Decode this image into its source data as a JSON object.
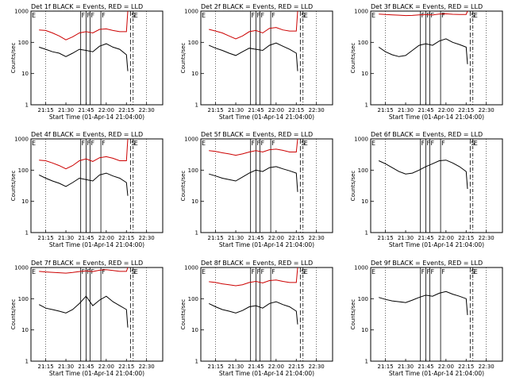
{
  "chart_data": {
    "type": "line",
    "layout": "3x3 grid of panels",
    "yscale": "log",
    "ylim": [
      1,
      1000
    ],
    "yticks": [
      "1",
      "10",
      "100",
      "1000"
    ],
    "ylabel": "Counts/sec",
    "xlabel": "Start Time (01-Apr-14 21:04:00)",
    "xlim": [
      "21:04",
      "22:42"
    ],
    "xticks": [
      "21:15",
      "21:30",
      "21:45",
      "22:00",
      "22:15",
      "22:30"
    ],
    "colors": {
      "events": "#000000",
      "lld": "#cc0000"
    },
    "event_markers": {
      "E": "21:04",
      "F": [
        "21:41",
        "21:45",
        "21:48",
        "21:56"
      ],
      "S": "22:18",
      "E2": "22:20"
    },
    "panels": [
      {
        "title": "Det 1f BLACK = Events, RED = LLD",
        "series": [
          {
            "x": [
              "21:10",
              "21:15",
              "21:20",
              "21:25",
              "21:30",
              "21:35",
              "21:40",
              "21:45",
              "21:50",
              "21:55",
              "22:00",
              "22:05",
              "22:10",
              "22:15",
              "22:16"
            ],
            "y": [
              250,
              240,
              200,
              160,
              120,
              150,
              200,
              220,
              200,
              260,
              270,
              240,
              220,
              220,
              1000
            ]
          },
          {
            "x": [
              "21:10",
              "21:15",
              "21:20",
              "21:25",
              "21:30",
              "21:35",
              "21:40",
              "21:45",
              "21:50",
              "21:55",
              "22:00",
              "22:05",
              "22:10",
              "22:15",
              "22:16"
            ],
            "y": [
              70,
              60,
              50,
              45,
              35,
              45,
              60,
              55,
              50,
              75,
              90,
              70,
              60,
              40,
              12
            ]
          }
        ]
      },
      {
        "title": "Det 2f BLACK = Events, RED = LLD",
        "series": [
          {
            "x": [
              "21:10",
              "21:15",
              "21:20",
              "21:25",
              "21:30",
              "21:35",
              "21:40",
              "21:45",
              "21:50",
              "21:55",
              "22:00",
              "22:05",
              "22:10",
              "22:15",
              "22:16"
            ],
            "y": [
              260,
              230,
              200,
              160,
              130,
              160,
              220,
              240,
              200,
              280,
              300,
              250,
              230,
              230,
              1000
            ]
          },
          {
            "x": [
              "21:10",
              "21:15",
              "21:20",
              "21:25",
              "21:30",
              "21:35",
              "21:40",
              "21:45",
              "21:50",
              "21:55",
              "22:00",
              "22:05",
              "22:10",
              "22:15",
              "22:16"
            ],
            "y": [
              80,
              65,
              55,
              45,
              38,
              50,
              65,
              60,
              55,
              80,
              95,
              75,
              60,
              45,
              12
            ]
          }
        ]
      },
      {
        "title": "Det 3f BLACK = Events, RED = LLD",
        "series": [
          {
            "x": [
              "21:10",
              "21:15",
              "21:20",
              "21:25",
              "21:30",
              "21:35",
              "21:40",
              "21:45",
              "21:50",
              "21:55",
              "22:00",
              "22:05",
              "22:10",
              "22:15",
              "22:16"
            ],
            "y": [
              800,
              780,
              760,
              740,
              720,
              730,
              760,
              780,
              760,
              800,
              820,
              790,
              780,
              780,
              1000
            ]
          },
          {
            "x": [
              "21:10",
              "21:15",
              "21:20",
              "21:25",
              "21:30",
              "21:35",
              "21:40",
              "21:45",
              "21:50",
              "21:55",
              "22:00",
              "22:05",
              "22:10",
              "22:15",
              "22:16"
            ],
            "y": [
              70,
              50,
              40,
              35,
              38,
              55,
              80,
              90,
              80,
              110,
              130,
              100,
              85,
              70,
              20
            ]
          }
        ]
      },
      {
        "title": "Det 4f BLACK = Events, RED = LLD",
        "series": [
          {
            "x": [
              "21:10",
              "21:15",
              "21:20",
              "21:25",
              "21:30",
              "21:35",
              "21:40",
              "21:45",
              "21:50",
              "21:55",
              "22:00",
              "22:05",
              "22:10",
              "22:15",
              "22:16"
            ],
            "y": [
              210,
              200,
              170,
              140,
              110,
              140,
              200,
              230,
              190,
              250,
              270,
              240,
              200,
              200,
              1000
            ]
          },
          {
            "x": [
              "21:10",
              "21:15",
              "21:20",
              "21:25",
              "21:30",
              "21:35",
              "21:40",
              "21:45",
              "21:50",
              "21:55",
              "22:00",
              "22:05",
              "22:10",
              "22:15",
              "22:16"
            ],
            "y": [
              70,
              55,
              45,
              38,
              30,
              40,
              55,
              50,
              45,
              70,
              80,
              65,
              55,
              40,
              15
            ]
          }
        ]
      },
      {
        "title": "Det 5f BLACK = Events, RED = LLD",
        "series": [
          {
            "x": [
              "21:10",
              "21:15",
              "21:20",
              "21:25",
              "21:30",
              "21:35",
              "21:40",
              "21:45",
              "21:50",
              "21:55",
              "22:00",
              "22:05",
              "22:10",
              "22:15",
              "22:16"
            ],
            "y": [
              420,
              400,
              360,
              330,
              300,
              330,
              380,
              420,
              380,
              450,
              470,
              430,
              380,
              380,
              1000
            ]
          },
          {
            "x": [
              "21:10",
              "21:15",
              "21:20",
              "21:25",
              "21:30",
              "21:35",
              "21:40",
              "21:45",
              "21:50",
              "21:55",
              "22:00",
              "22:05",
              "22:10",
              "22:15",
              "22:16"
            ],
            "y": [
              75,
              65,
              55,
              50,
              45,
              60,
              80,
              100,
              90,
              120,
              130,
              110,
              95,
              80,
              20
            ]
          }
        ]
      },
      {
        "title": "Det 6f BLACK = Events, RED = LLD",
        "series": [
          {
            "x": [
              "21:10",
              "21:15",
              "21:20",
              "21:25",
              "21:30",
              "21:35",
              "21:40",
              "21:45",
              "21:50",
              "21:55",
              "22:00",
              "22:05",
              "22:10",
              "22:15",
              "22:16"
            ],
            "y": [
              null,
              null,
              null,
              null,
              null,
              null,
              null,
              null,
              null,
              null,
              null,
              null,
              null,
              null,
              null
            ]
          },
          {
            "x": [
              "21:10",
              "21:15",
              "21:20",
              "21:25",
              "21:30",
              "21:35",
              "21:40",
              "21:45",
              "21:50",
              "21:55",
              "22:00",
              "22:05",
              "22:10",
              "22:15",
              "22:16"
            ],
            "y": [
              200,
              160,
              120,
              90,
              75,
              80,
              100,
              130,
              160,
              200,
              210,
              170,
              130,
              90,
              25
            ]
          }
        ]
      },
      {
        "title": "Det 7f BLACK = Events, RED = LLD",
        "series": [
          {
            "x": [
              "21:10",
              "21:15",
              "21:20",
              "21:25",
              "21:30",
              "21:35",
              "21:40",
              "21:45",
              "21:50",
              "21:55",
              "22:00",
              "22:05",
              "22:10",
              "22:15",
              "22:16"
            ],
            "y": [
              750,
              720,
              700,
              680,
              660,
              690,
              740,
              780,
              740,
              820,
              850,
              800,
              750,
              750,
              1000
            ]
          },
          {
            "x": [
              "21:10",
              "21:15",
              "21:20",
              "21:25",
              "21:30",
              "21:35",
              "21:40",
              "21:45",
              "21:50",
              "21:55",
              "22:00",
              "22:05",
              "22:10",
              "22:15",
              "22:16"
            ],
            "y": [
              65,
              50,
              45,
              40,
              35,
              45,
              70,
              120,
              60,
              90,
              120,
              80,
              60,
              45,
              12
            ]
          }
        ]
      },
      {
        "title": "Det 8f BLACK = Events, RED = LLD",
        "series": [
          {
            "x": [
              "21:10",
              "21:15",
              "21:20",
              "21:25",
              "21:30",
              "21:35",
              "21:40",
              "21:45",
              "21:50",
              "21:55",
              "22:00",
              "22:05",
              "22:10",
              "22:15",
              "22:16"
            ],
            "y": [
              350,
              330,
              300,
              280,
              260,
              280,
              330,
              360,
              320,
              380,
              400,
              360,
              330,
              330,
              1000
            ]
          },
          {
            "x": [
              "21:10",
              "21:15",
              "21:20",
              "21:25",
              "21:30",
              "21:35",
              "21:40",
              "21:45",
              "21:50",
              "21:55",
              "22:00",
              "22:05",
              "22:10",
              "22:15",
              "22:16"
            ],
            "y": [
              70,
              55,
              45,
              40,
              35,
              42,
              55,
              60,
              50,
              70,
              80,
              65,
              55,
              40,
              15
            ]
          }
        ]
      },
      {
        "title": "Det 9f BLACK = Events, RED = LLD",
        "series": [
          {
            "x": [
              "21:10",
              "21:15",
              "21:20",
              "21:25",
              "21:30",
              "21:35",
              "21:40",
              "21:45",
              "21:50",
              "21:55",
              "22:00",
              "22:05",
              "22:10",
              "22:15",
              "22:16"
            ],
            "y": [
              null,
              null,
              null,
              null,
              null,
              null,
              null,
              null,
              null,
              null,
              null,
              null,
              null,
              null,
              null
            ]
          },
          {
            "x": [
              "21:10",
              "21:15",
              "21:20",
              "21:25",
              "21:30",
              "21:35",
              "21:40",
              "21:45",
              "21:50",
              "21:55",
              "22:00",
              "22:05",
              "22:10",
              "22:15",
              "22:16"
            ],
            "y": [
              110,
              95,
              85,
              80,
              75,
              90,
              110,
              130,
              120,
              150,
              170,
              140,
              120,
              100,
              30
            ]
          }
        ]
      }
    ]
  }
}
